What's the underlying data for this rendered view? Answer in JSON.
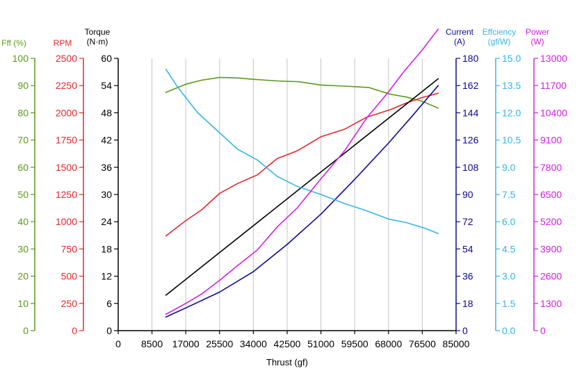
{
  "chart_data": {
    "type": "line",
    "title": "",
    "xlabel": "Thrust (gf)",
    "x_ticks": [
      0,
      8500,
      17000,
      25500,
      34000,
      42500,
      51000,
      59500,
      68000,
      76500,
      85000
    ],
    "xlim": [
      0,
      85000
    ],
    "grid": true,
    "axes": [
      {
        "id": "fff",
        "label_line1": "Fff (%)",
        "label_line2": "",
        "color": "#5a9a1a",
        "min": 0,
        "max": 100,
        "ticks": [
          0,
          10,
          20,
          30,
          40,
          50,
          60,
          70,
          80,
          90,
          100
        ],
        "tick_decimals": 0
      },
      {
        "id": "rpm",
        "label_line1": "RPM",
        "label_line2": "",
        "color": "#e8262a",
        "min": 0,
        "max": 2500,
        "ticks": [
          0,
          250,
          500,
          750,
          1000,
          1250,
          1500,
          1750,
          2000,
          2250,
          2500
        ],
        "tick_decimals": 0
      },
      {
        "id": "torque",
        "label_line1": "Torque",
        "label_line2": "(N·m)",
        "color": "#000000",
        "min": 0,
        "max": 60,
        "ticks": [
          0,
          6,
          12,
          18,
          24,
          30,
          36,
          42,
          48,
          54,
          60
        ],
        "tick_decimals": 0
      },
      {
        "id": "current",
        "label_line1": "Current",
        "label_line2": "(A)",
        "color": "#0a0a96",
        "min": 0,
        "max": 180,
        "ticks": [
          0,
          18,
          36,
          54,
          72,
          90,
          108,
          126,
          144,
          162,
          180
        ],
        "tick_decimals": 0
      },
      {
        "id": "efficiency",
        "label_line1": "Effciency",
        "label_line2": "(gf/W)",
        "color": "#33b5e8",
        "min": 0,
        "max": 15,
        "ticks": [
          0,
          1.5,
          3,
          4.5,
          6,
          7.5,
          9,
          10.5,
          12,
          13.5,
          15
        ],
        "tick_decimals": 1
      },
      {
        "id": "power",
        "label_line1": "Power",
        "label_line2": "(W)",
        "color": "#d21ee6",
        "min": 0,
        "max": 13000,
        "ticks": [
          0,
          1300,
          2600,
          3900,
          5200,
          6500,
          7800,
          9100,
          10400,
          11700,
          13000
        ],
        "tick_decimals": 0
      }
    ],
    "series": [
      {
        "axis": "fff",
        "color": "#5a9a1a",
        "x": [
          12000,
          17000,
          21000,
          25500,
          30000,
          34000,
          40000,
          45500,
          51000,
          57000,
          63000,
          68500,
          72500,
          76500,
          80500
        ],
        "values": [
          87.5,
          90.5,
          92,
          93,
          92.8,
          92.3,
          91.7,
          91.4,
          90.2,
          89.8,
          89.3,
          86.8,
          85.8,
          84.2,
          81.7
        ]
      },
      {
        "axis": "rpm",
        "color": "#e8262a",
        "x": [
          12000,
          17000,
          21000,
          25500,
          30000,
          35000,
          40000,
          45000,
          51000,
          57000,
          62500,
          68500,
          72500,
          76500,
          80500
        ],
        "values": [
          870,
          1010,
          1110,
          1260,
          1350,
          1430,
          1580,
          1650,
          1780,
          1850,
          1960,
          2030,
          2090,
          2140,
          2180
        ]
      },
      {
        "axis": "torque",
        "color": "#000000",
        "x": [
          12000,
          80500
        ],
        "values": [
          7.8,
          55.5
        ]
      },
      {
        "axis": "current",
        "color": "#0a0a96",
        "x": [
          12000,
          17000,
          25500,
          34000,
          42500,
          51000,
          59500,
          68000,
          74000,
          80500
        ],
        "values": [
          9,
          15,
          25.5,
          39,
          57,
          77,
          100,
          124,
          142,
          162
        ]
      },
      {
        "axis": "efficiency",
        "color": "#33b5e8",
        "x": [
          12000,
          15000,
          20000,
          25500,
          30000,
          35000,
          40000,
          45000,
          51000,
          57000,
          62500,
          68000,
          72500,
          77000,
          80500
        ],
        "values": [
          14.4,
          13.4,
          12.0,
          10.9,
          10.0,
          9.4,
          8.5,
          7.95,
          7.5,
          7.0,
          6.6,
          6.15,
          5.95,
          5.65,
          5.35
        ]
      },
      {
        "axis": "power",
        "color": "#d21ee6",
        "x": [
          12000,
          17000,
          21000,
          25500,
          30000,
          35000,
          40000,
          45000,
          51000,
          57000,
          62500,
          68000,
          72000,
          76500,
          80500
        ],
        "values": [
          780,
          1300,
          1750,
          2400,
          3100,
          3850,
          4950,
          5850,
          7250,
          8600,
          10150,
          11400,
          12400,
          13400,
          14400
        ]
      }
    ]
  }
}
